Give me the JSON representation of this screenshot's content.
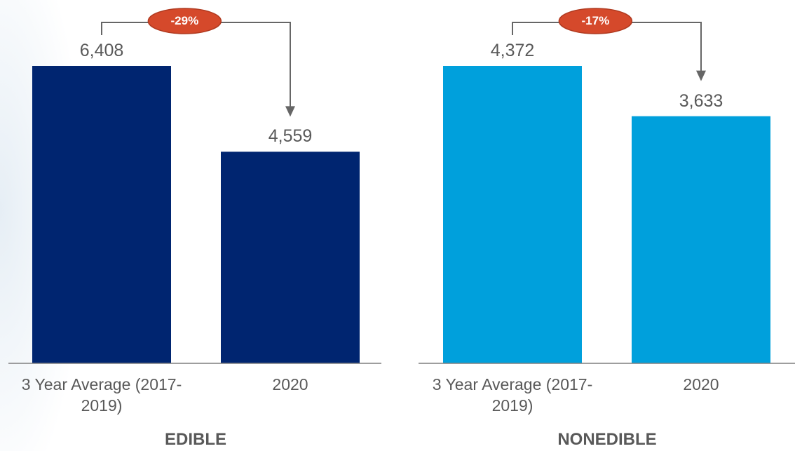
{
  "chart_data": [
    {
      "type": "bar",
      "title": "EDIBLE",
      "categories": [
        "3 Year Average (2017-2019)",
        "2020"
      ],
      "values": [
        6408,
        4559
      ],
      "value_labels": [
        "6,408",
        "4,559"
      ],
      "color": "#002570",
      "annotation": "-29%"
    },
    {
      "type": "bar",
      "title": "NONEDIBLE",
      "categories": [
        "3 Year Average (2017-2019)",
        "2020"
      ],
      "values": [
        4372,
        3633
      ],
      "value_labels": [
        "4,372",
        "3,633"
      ],
      "color": "#00a0dc",
      "annotation": "-17%"
    }
  ]
}
